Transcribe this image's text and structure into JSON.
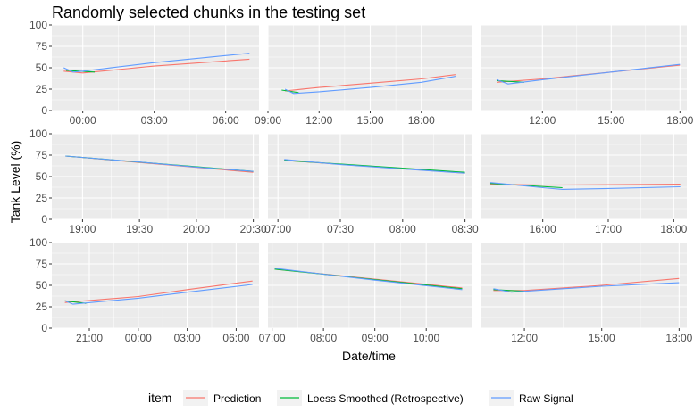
{
  "colors": {
    "panel_bg": "#EBEBEB",
    "grid": "#ffffff",
    "tick_text": "#4d4d4d"
  },
  "chart_data": {
    "type": "line",
    "title": "Randomly selected chunks in the testing set",
    "xlabel": "Date/time",
    "ylabel": "Tank Level (%)",
    "ylim": [
      0,
      100
    ],
    "y_ticks": [
      0,
      25,
      50,
      75,
      100
    ],
    "grid": true,
    "legend": {
      "position": "bottom",
      "title": "item",
      "entries": [
        {
          "name": "Prediction",
          "color": "#F8766D"
        },
        {
          "name": "Loess Smoothed (Retrospective)",
          "color": "#00BA38"
        },
        {
          "name": "Raw Signal",
          "color": "#619CFF"
        }
      ]
    },
    "panels": [
      {
        "x_tick_labels": [
          "00:00",
          "03:00",
          "06:00"
        ],
        "x_tick_hours": [
          24,
          27,
          30
        ],
        "x_range_hours": [
          22.7,
          31.4
        ],
        "series": [
          {
            "name": "Prediction",
            "x": [
              23.2,
              24,
              27,
              31
            ],
            "y": [
              46,
              44,
              52,
              60
            ]
          },
          {
            "name": "Loess Smoothed (Retrospective)",
            "x": [
              23.3,
              24.5
            ],
            "y": [
              47,
              45
            ]
          },
          {
            "name": "Raw Signal",
            "x": [
              23.2,
              23.6,
              24,
              27,
              31
            ],
            "y": [
              50,
              45,
              46,
              56,
              67
            ]
          }
        ]
      },
      {
        "x_tick_labels": [
          "09:00",
          "12:00",
          "15:00",
          "18:00"
        ],
        "x_tick_hours": [
          9,
          12,
          15,
          18
        ],
        "x_range_hours": [
          9.0,
          21.0
        ],
        "series": [
          {
            "name": "Prediction",
            "x": [
              10,
              12,
              15,
              18,
              20
            ],
            "y": [
              23,
              27,
              32,
              37,
              42
            ]
          },
          {
            "name": "Loess Smoothed (Retrospective)",
            "x": [
              9.8,
              10.8
            ],
            "y": [
              24,
              21
            ]
          },
          {
            "name": "Raw Signal",
            "x": [
              10,
              10.5,
              12,
              15,
              18,
              20
            ],
            "y": [
              25,
              20,
              22,
              27,
              33,
              40
            ]
          }
        ]
      },
      {
        "x_tick_labels": [
          "12:00",
          "15:00",
          "18:00"
        ],
        "x_tick_hours": [
          12,
          15,
          18
        ],
        "x_range_hours": [
          9.3,
          18.3
        ],
        "series": [
          {
            "name": "Prediction",
            "x": [
              10,
              12,
              15,
              18
            ],
            "y": [
              33,
              37,
              45,
              53
            ]
          },
          {
            "name": "Loess Smoothed (Retrospective)",
            "x": [
              10,
              11.2
            ],
            "y": [
              35,
              33
            ]
          },
          {
            "name": "Raw Signal",
            "x": [
              10,
              10.5,
              12,
              15,
              18
            ],
            "y": [
              36,
              31,
              36,
              45,
              54
            ]
          }
        ]
      },
      {
        "x_tick_labels": [
          "19:00",
          "19:30",
          "20:00",
          "20:30"
        ],
        "x_tick_hours": [
          19,
          19.5,
          20,
          20.5
        ],
        "x_range_hours": [
          18.73,
          20.55
        ],
        "series": [
          {
            "name": "Prediction",
            "x": [
              18.85,
              20.5
            ],
            "y": [
              74,
              55
            ]
          },
          {
            "name": "Loess Smoothed (Retrospective)",
            "x": [
              18.85,
              20.5
            ],
            "y": [
              74,
              56
            ]
          },
          {
            "name": "Raw Signal",
            "x": [
              18.85,
              19.5,
              20,
              20.5
            ],
            "y": [
              74,
              67,
              61,
              56
            ]
          }
        ]
      },
      {
        "x_tick_labels": [
          "07:00",
          "07:30",
          "08:00",
          "08:30"
        ],
        "x_tick_hours": [
          7,
          7.5,
          8,
          8.5
        ],
        "x_range_hours": [
          6.92,
          8.56
        ],
        "series": [
          {
            "name": "Prediction",
            "x": [
              7.05,
              8.5
            ],
            "y": [
              69,
              54
            ]
          },
          {
            "name": "Loess Smoothed (Retrospective)",
            "x": [
              7.05,
              8.5
            ],
            "y": [
              69,
              55
            ]
          },
          {
            "name": "Raw Signal",
            "x": [
              7.05,
              7.5,
              8,
              8.5
            ],
            "y": [
              70,
              64,
              59,
              54
            ]
          }
        ]
      },
      {
        "x_tick_labels": [
          "16:00",
          "17:00",
          "18:00"
        ],
        "x_tick_hours": [
          16,
          17,
          18
        ],
        "x_range_hours": [
          15.05,
          18.2
        ],
        "series": [
          {
            "name": "Prediction",
            "x": [
              15.2,
              16,
              18.1
            ],
            "y": [
              41,
              40,
              41
            ]
          },
          {
            "name": "Loess Smoothed (Retrospective)",
            "x": [
              15.2,
              16.3
            ],
            "y": [
              42,
              37
            ]
          },
          {
            "name": "Raw Signal",
            "x": [
              15.2,
              15.6,
              16,
              16.3,
              17,
              18.1
            ],
            "y": [
              43,
              40,
              37,
              35,
              36,
              38
            ]
          }
        ]
      },
      {
        "x_tick_labels": [
          "21:00",
          "00:00",
          "03:00",
          "06:00"
        ],
        "x_tick_hours": [
          21,
          24,
          27,
          30
        ],
        "x_range_hours": [
          18.7,
          31.4
        ],
        "series": [
          {
            "name": "Prediction",
            "x": [
              19.5,
              24,
              27,
              31
            ],
            "y": [
              30,
              37,
              45,
              55
            ]
          },
          {
            "name": "Loess Smoothed (Retrospective)",
            "x": [
              19.5,
              20.8
            ],
            "y": [
              32,
              29
            ]
          },
          {
            "name": "Raw Signal",
            "x": [
              19.5,
              20,
              24,
              27,
              31
            ],
            "y": [
              32,
              28,
              35,
              42,
              51
            ]
          }
        ]
      },
      {
        "x_tick_labels": [
          "07:00",
          "08:00",
          "09:00",
          "10:00"
        ],
        "x_tick_hours": [
          7,
          8,
          9,
          10
        ],
        "x_range_hours": [
          6.92,
          10.9
        ],
        "series": [
          {
            "name": "Prediction",
            "x": [
              7.05,
              10.7
            ],
            "y": [
              69,
              47
            ]
          },
          {
            "name": "Loess Smoothed (Retrospective)",
            "x": [
              7.05,
              10.7
            ],
            "y": [
              69,
              46
            ]
          },
          {
            "name": "Raw Signal",
            "x": [
              7.05,
              8,
              9,
              10.7
            ],
            "y": [
              70,
              63,
              56,
              45
            ]
          }
        ]
      },
      {
        "x_tick_labels": [
          "12:00",
          "15:00",
          "18:00"
        ],
        "x_tick_hours": [
          12,
          15,
          18
        ],
        "x_range_hours": [
          10.3,
          18.3
        ],
        "series": [
          {
            "name": "Prediction",
            "x": [
              10.8,
              12,
              15,
              18
            ],
            "y": [
              44,
              44,
              50,
              58
            ]
          },
          {
            "name": "Loess Smoothed (Retrospective)",
            "x": [
              10.8,
              12
            ],
            "y": [
              45,
              43
            ]
          },
          {
            "name": "Raw Signal",
            "x": [
              10.8,
              11.5,
              12,
              15,
              18
            ],
            "y": [
              46,
              42,
              43,
              49,
              53
            ]
          }
        ]
      }
    ]
  }
}
